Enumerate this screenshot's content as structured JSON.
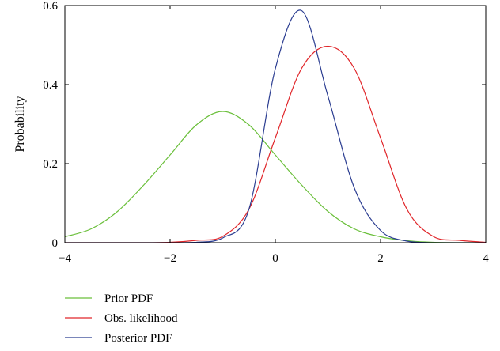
{
  "chart_data": {
    "type": "line",
    "title": "",
    "xlabel": "",
    "ylabel": "Probability",
    "xlim": [
      -4,
      4
    ],
    "ylim": [
      0,
      0.6
    ],
    "xticks": [
      -4,
      -2,
      0,
      2,
      4
    ],
    "xtick_labels": [
      "−4",
      "−2",
      "0",
      "2",
      "4"
    ],
    "yticks": [
      0,
      0.2,
      0.4,
      0.6
    ],
    "ytick_labels": [
      "0",
      "0.2",
      "0.4",
      "0.6"
    ],
    "grid": false,
    "legend_position": "bottom-left, below plot",
    "x": [
      -4.0,
      -3.5,
      -3.0,
      -2.5,
      -2.0,
      -1.5,
      -1.0,
      -0.5,
      0.0,
      0.5,
      1.0,
      1.5,
      2.0,
      2.5,
      3.0,
      3.5,
      4.0
    ],
    "series": [
      {
        "name": "Prior PDF",
        "color": "#6abf3a",
        "values": [
          0.015,
          0.035,
          0.079,
          0.146,
          0.222,
          0.298,
          0.332,
          0.298,
          0.222,
          0.146,
          0.079,
          0.035,
          0.015,
          0.005,
          0.001,
          0.0,
          0.0
        ]
      },
      {
        "name": "Obs. likelihood",
        "color": "#e0262a",
        "values": [
          0.0,
          0.0,
          0.0,
          0.0,
          0.001,
          0.006,
          0.016,
          0.085,
          0.265,
          0.441,
          0.497,
          0.441,
          0.265,
          0.085,
          0.016,
          0.006,
          0.001
        ]
      },
      {
        "name": "Posterior PDF",
        "color": "#2b3d91",
        "values": [
          0.0,
          0.0,
          0.0,
          0.0,
          0.0,
          0.001,
          0.012,
          0.085,
          0.44,
          0.587,
          0.371,
          0.139,
          0.031,
          0.004,
          0.0,
          0.0,
          0.0
        ]
      }
    ]
  }
}
